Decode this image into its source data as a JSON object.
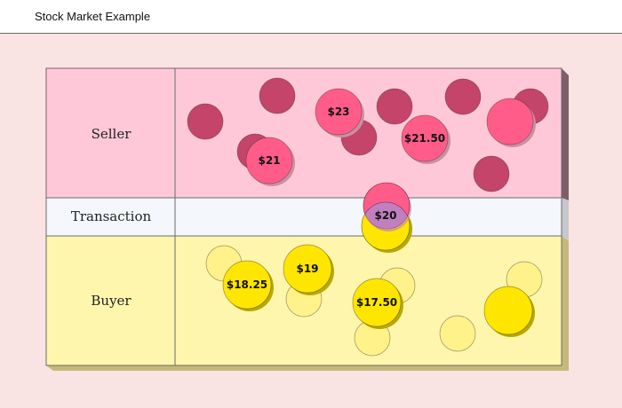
{
  "header": {
    "title": "Stock Market Example"
  },
  "rows": {
    "seller": "Seller",
    "transaction": "Transaction",
    "buyer": "Buyer"
  },
  "prices": {
    "seller": [
      "$23",
      "$21",
      "$21.50"
    ],
    "transaction": "$20",
    "buyer": [
      "$18.25",
      "$19",
      "$17.50"
    ]
  },
  "colors": {
    "seller_row": "#ffc8d9",
    "transaction_row": "#f4f7fb",
    "buyer_row": "#fff6ad",
    "seller_order": "#ff5c8a",
    "seller_inactive": "#c4446a",
    "buyer_order": "#ffe600",
    "buyer_inactive": "#fff28a",
    "match": "#c080c0"
  }
}
